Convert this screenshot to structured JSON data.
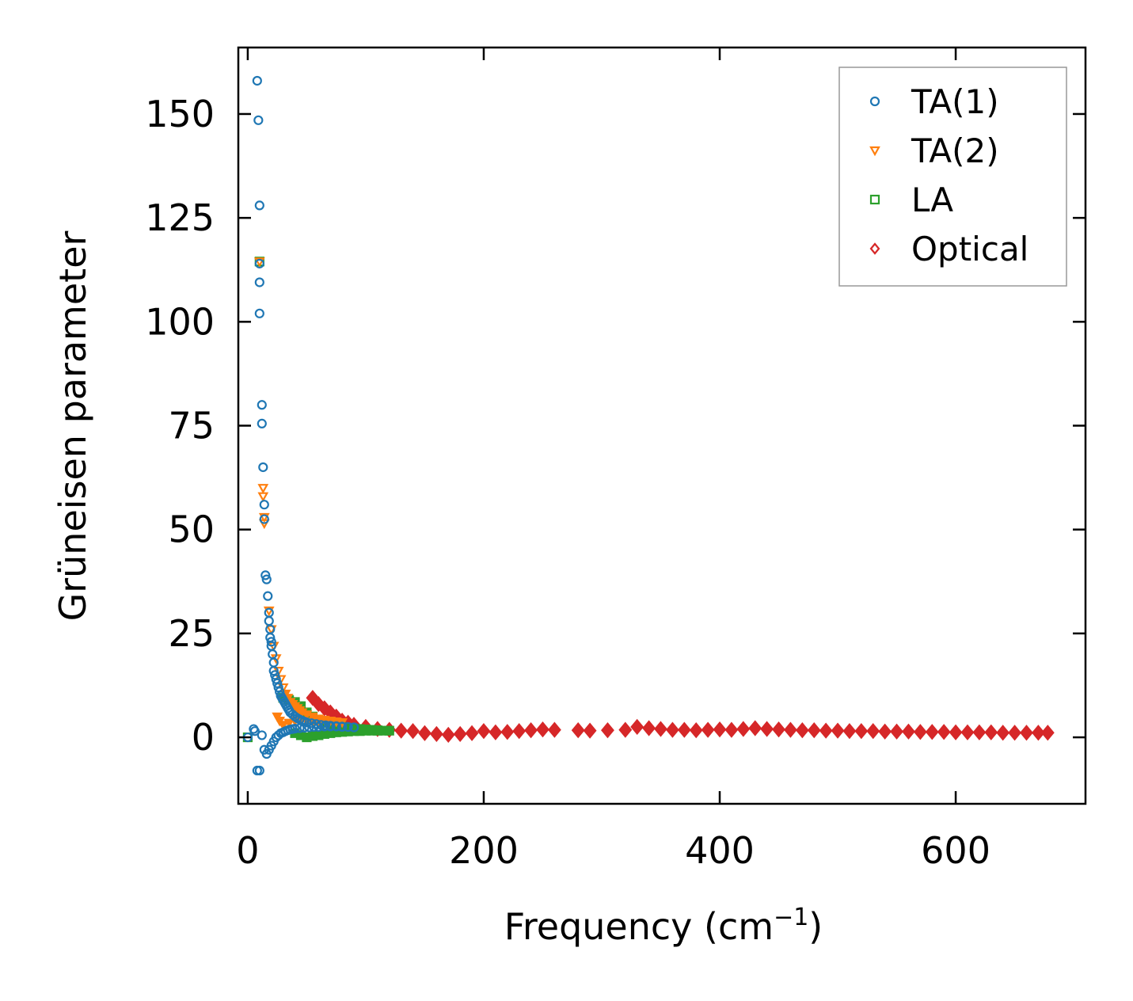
{
  "chart_data": {
    "type": "scatter",
    "title": "",
    "xlabel": "Frequency (cm",
    "xlabel_superscript": "−1",
    "xlabel_suffix": ")",
    "ylabel": "Grüneisen parameter",
    "xlim": [
      -8,
      710
    ],
    "ylim": [
      -16,
      166
    ],
    "x_ticks": [
      0,
      200,
      400,
      600
    ],
    "y_ticks": [
      0,
      25,
      50,
      75,
      100,
      125,
      150
    ],
    "tick_direction": "in",
    "grid": false,
    "legend_position": "top-right",
    "series": [
      {
        "name": "TA(1)",
        "marker": "circle",
        "color": "#1f77b4",
        "points": [
          [
            8,
            158
          ],
          [
            9,
            148.5
          ],
          [
            10,
            128
          ],
          [
            10,
            114
          ],
          [
            10,
            109.5
          ],
          [
            10,
            102
          ],
          [
            12,
            80
          ],
          [
            12,
            75.5
          ],
          [
            13,
            65
          ],
          [
            14,
            56
          ],
          [
            14,
            52.5
          ],
          [
            15,
            39
          ],
          [
            16,
            38
          ],
          [
            17,
            34
          ],
          [
            18,
            30
          ],
          [
            18,
            28
          ],
          [
            19,
            26
          ],
          [
            19,
            24
          ],
          [
            20,
            23
          ],
          [
            20,
            22
          ],
          [
            21,
            20
          ],
          [
            22,
            18
          ],
          [
            22,
            16
          ],
          [
            23,
            15
          ],
          [
            24,
            14
          ],
          [
            25,
            13
          ],
          [
            26,
            12
          ],
          [
            27,
            11
          ],
          [
            28,
            10
          ],
          [
            29,
            9.5
          ],
          [
            30,
            9
          ],
          [
            31,
            8.5
          ],
          [
            32,
            8
          ],
          [
            33,
            7.5
          ],
          [
            34,
            7
          ],
          [
            35,
            6.5
          ],
          [
            36,
            6
          ],
          [
            38,
            5.5
          ],
          [
            40,
            5
          ],
          [
            42,
            4.6
          ],
          [
            44,
            4.3
          ],
          [
            46,
            4
          ],
          [
            48,
            3.8
          ],
          [
            50,
            3.6
          ],
          [
            54,
            3.4
          ],
          [
            58,
            3.2
          ],
          [
            62,
            3
          ],
          [
            66,
            2.9
          ],
          [
            70,
            2.8
          ],
          [
            75,
            2.7
          ],
          [
            80,
            2.6
          ],
          [
            85,
            2.5
          ],
          [
            90,
            2.4
          ],
          [
            5,
            2
          ],
          [
            6,
            1.5
          ],
          [
            8,
            -8
          ],
          [
            10,
            -8
          ],
          [
            12,
            0.5
          ],
          [
            14,
            -3
          ],
          [
            16,
            -4
          ],
          [
            18,
            -3
          ],
          [
            20,
            -2
          ],
          [
            22,
            -1
          ],
          [
            24,
            0
          ],
          [
            26,
            0.5
          ],
          [
            28,
            1
          ],
          [
            30,
            1.2
          ],
          [
            32,
            1.5
          ],
          [
            34,
            1.7
          ],
          [
            36,
            1.9
          ],
          [
            38,
            2
          ],
          [
            40,
            2.1
          ],
          [
            44,
            2.2
          ],
          [
            48,
            2.3
          ],
          [
            52,
            2.4
          ],
          [
            56,
            2.5
          ],
          [
            60,
            2.5
          ],
          [
            65,
            2.6
          ],
          [
            70,
            2.6
          ],
          [
            75,
            2.6
          ],
          [
            80,
            2.5
          ],
          [
            85,
            2.5
          ],
          [
            90,
            2.4
          ],
          [
            0,
            0
          ]
        ]
      },
      {
        "name": "TA(2)",
        "marker": "triangle-down",
        "color": "#ff7f0e",
        "points": [
          [
            10,
            114.5
          ],
          [
            13,
            60
          ],
          [
            13,
            58
          ],
          [
            14,
            53
          ],
          [
            14,
            51.5
          ],
          [
            18,
            30.5
          ],
          [
            20,
            26
          ],
          [
            22,
            22
          ],
          [
            24,
            19
          ],
          [
            26,
            16
          ],
          [
            28,
            14
          ],
          [
            30,
            12
          ],
          [
            32,
            10.5
          ],
          [
            34,
            9.5
          ],
          [
            36,
            8.5
          ],
          [
            38,
            8
          ],
          [
            40,
            7.5
          ],
          [
            42,
            7
          ],
          [
            44,
            6.5
          ],
          [
            46,
            6
          ],
          [
            50,
            5.5
          ],
          [
            55,
            5
          ],
          [
            60,
            4.5
          ],
          [
            65,
            4.2
          ],
          [
            70,
            4
          ],
          [
            75,
            3.8
          ],
          [
            80,
            3.6
          ],
          [
            25,
            5
          ],
          [
            27,
            4
          ],
          [
            30,
            3
          ],
          [
            35,
            3.5
          ],
          [
            40,
            4
          ],
          [
            45,
            4
          ],
          [
            50,
            3.8
          ],
          [
            55,
            3.6
          ],
          [
            60,
            3.4
          ]
        ]
      },
      {
        "name": "LA",
        "marker": "square",
        "color": "#2ca02c",
        "points": [
          [
            10,
            114.5
          ],
          [
            30,
            9.5
          ],
          [
            35,
            9
          ],
          [
            40,
            8.5
          ],
          [
            45,
            7.5
          ],
          [
            50,
            6
          ],
          [
            55,
            5
          ],
          [
            60,
            4
          ],
          [
            65,
            3.5
          ],
          [
            70,
            3
          ],
          [
            75,
            2.8
          ],
          [
            80,
            2.5
          ],
          [
            85,
            2.3
          ],
          [
            90,
            2.1
          ],
          [
            95,
            2
          ],
          [
            100,
            1.9
          ],
          [
            105,
            1.8
          ],
          [
            110,
            1.7
          ],
          [
            115,
            1.6
          ],
          [
            120,
            1.6
          ],
          [
            40,
            1
          ],
          [
            45,
            0.5
          ],
          [
            50,
            0
          ],
          [
            55,
            0.3
          ],
          [
            60,
            0.5
          ],
          [
            65,
            0.8
          ],
          [
            70,
            1
          ],
          [
            75,
            1.2
          ],
          [
            80,
            1.3
          ],
          [
            85,
            1.4
          ],
          [
            90,
            1.5
          ],
          [
            95,
            1.5
          ],
          [
            100,
            1.6
          ],
          [
            105,
            1.6
          ],
          [
            110,
            1.6
          ],
          [
            0,
            0
          ]
        ]
      },
      {
        "name": "Optical",
        "marker": "diamond",
        "color": "#d62728",
        "points": [
          [
            55,
            9.5
          ],
          [
            60,
            8
          ],
          [
            65,
            7
          ],
          [
            70,
            6
          ],
          [
            75,
            5
          ],
          [
            80,
            4
          ],
          [
            85,
            3.5
          ],
          [
            90,
            3
          ],
          [
            100,
            2.5
          ],
          [
            110,
            2
          ],
          [
            120,
            1.8
          ],
          [
            130,
            1.6
          ],
          [
            140,
            1.5
          ],
          [
            150,
            1
          ],
          [
            160,
            0.8
          ],
          [
            170,
            0.6
          ],
          [
            180,
            0.8
          ],
          [
            190,
            1
          ],
          [
            200,
            1.5
          ],
          [
            210,
            1.2
          ],
          [
            220,
            1.3
          ],
          [
            230,
            1.5
          ],
          [
            240,
            1.7
          ],
          [
            250,
            1.9
          ],
          [
            260,
            1.8
          ],
          [
            280,
            1.7
          ],
          [
            290,
            1.6
          ],
          [
            305,
            1.7
          ],
          [
            320,
            1.8
          ],
          [
            330,
            2.5
          ],
          [
            340,
            2.2
          ],
          [
            350,
            2
          ],
          [
            360,
            1.8
          ],
          [
            370,
            1.8
          ],
          [
            380,
            1.7
          ],
          [
            390,
            1.8
          ],
          [
            400,
            1.9
          ],
          [
            410,
            1.8
          ],
          [
            420,
            2
          ],
          [
            430,
            2.2
          ],
          [
            440,
            2
          ],
          [
            450,
            1.9
          ],
          [
            460,
            1.8
          ],
          [
            470,
            1.7
          ],
          [
            480,
            1.7
          ],
          [
            490,
            1.6
          ],
          [
            500,
            1.6
          ],
          [
            510,
            1.5
          ],
          [
            520,
            1.5
          ],
          [
            530,
            1.5
          ],
          [
            540,
            1.4
          ],
          [
            550,
            1.4
          ],
          [
            560,
            1.4
          ],
          [
            570,
            1.3
          ],
          [
            580,
            1.3
          ],
          [
            590,
            1.3
          ],
          [
            600,
            1.2
          ],
          [
            610,
            1.2
          ],
          [
            620,
            1.2
          ],
          [
            630,
            1.2
          ],
          [
            640,
            1.1
          ],
          [
            650,
            1.1
          ],
          [
            660,
            1.1
          ],
          [
            670,
            1.1
          ],
          [
            678,
            1.1
          ]
        ]
      }
    ]
  }
}
